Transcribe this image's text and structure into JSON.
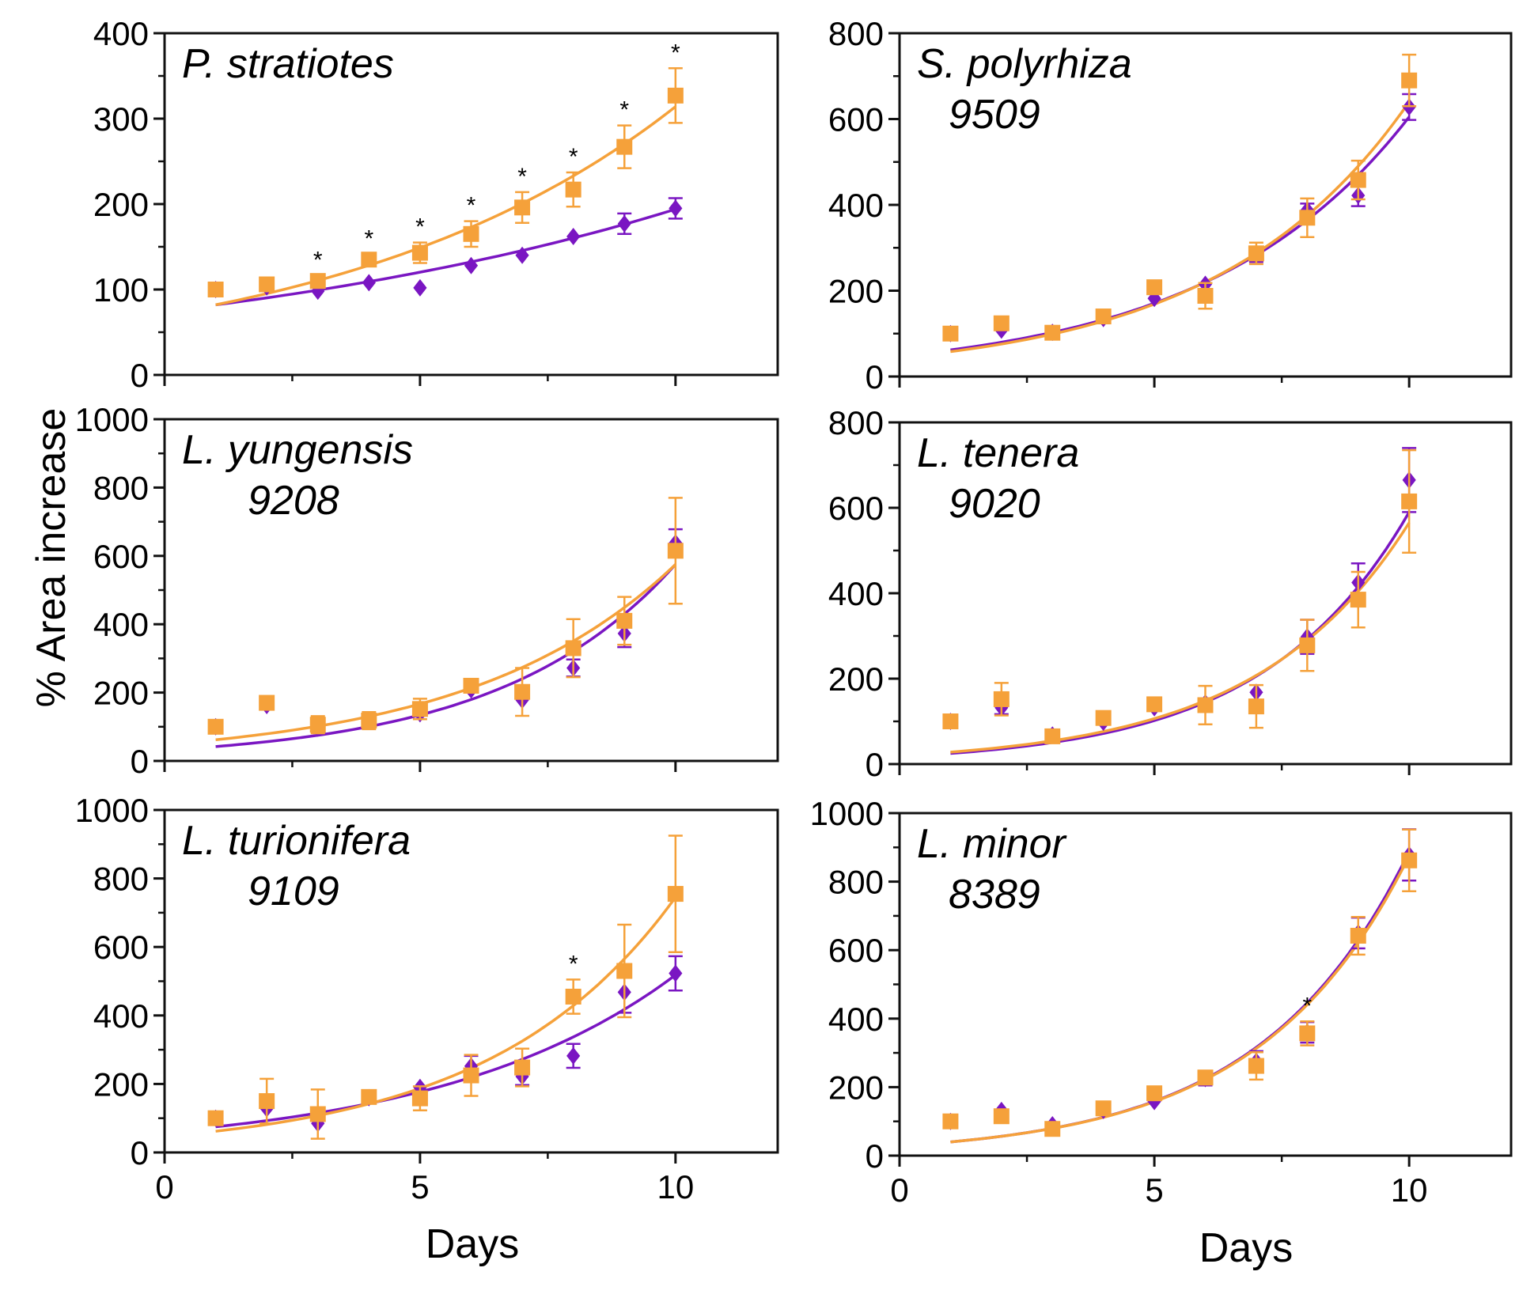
{
  "colors": {
    "series_a": "#7a16c2",
    "series_b": "#f5a13a",
    "frame": "#111111"
  },
  "ylabel": "% Area increase",
  "xlabel": "Days",
  "chart_data": [
    {
      "type": "scatter",
      "title_line1": "P. stratiotes",
      "title_line2": "",
      "ylim": [
        0,
        400
      ],
      "yticks": [
        "0",
        "100",
        "200",
        "300",
        "400"
      ],
      "xlim": [
        0,
        12
      ],
      "xticks": [
        "",
        "",
        ""
      ],
      "x": [
        1,
        2,
        3,
        4,
        5,
        6,
        7,
        8,
        9,
        10
      ],
      "series": [
        {
          "name": "purple",
          "marker": "diamond",
          "values": [
            100,
            103,
            98,
            108,
            102,
            128,
            140,
            162,
            177,
            195
          ],
          "err": [
            0,
            0,
            0,
            0,
            0,
            0,
            0,
            0,
            12,
            12
          ],
          "fit": [
            82,
            194
          ]
        },
        {
          "name": "orange",
          "marker": "square",
          "values": [
            100,
            106,
            110,
            135,
            143,
            165,
            196,
            217,
            267,
            327
          ],
          "err": [
            0,
            0,
            6,
            6,
            12,
            15,
            18,
            20,
            25,
            32
          ],
          "fit": [
            82,
            314
          ]
        }
      ],
      "significance": {
        "symbol": "*",
        "at_x": [
          3,
          4,
          5,
          6,
          7,
          8,
          9,
          10
        ]
      }
    },
    {
      "type": "scatter",
      "title_line1": "S. polyrhiza",
      "title_line2": "9509",
      "ylim": [
        0,
        800
      ],
      "yticks": [
        "0",
        "200",
        "400",
        "600",
        "800"
      ],
      "xlim": [
        0,
        12
      ],
      "xticks": [
        "",
        "",
        ""
      ],
      "x": [
        1,
        2,
        3,
        4,
        5,
        6,
        7,
        8,
        9,
        10
      ],
      "series": [
        {
          "name": "purple",
          "marker": "diamond",
          "values": [
            100,
            108,
            103,
            135,
            182,
            215,
            282,
            388,
            422,
            628
          ],
          "err": [
            0,
            0,
            0,
            0,
            0,
            0,
            15,
            15,
            25,
            30
          ],
          "fit": [
            62,
            605
          ]
        },
        {
          "name": "orange",
          "marker": "square",
          "values": [
            100,
            124,
            102,
            140,
            208,
            188,
            287,
            370,
            458,
            690
          ],
          "err": [
            0,
            0,
            0,
            0,
            0,
            30,
            25,
            45,
            45,
            60
          ],
          "fit": [
            58,
            640
          ]
        }
      ],
      "significance": {
        "symbol": "*",
        "at_x": []
      }
    },
    {
      "type": "scatter",
      "title_line1": "L. yungensis",
      "title_line2": "9208",
      "ylim": [
        0,
        1000
      ],
      "yticks": [
        "0",
        "200",
        "400",
        "600",
        "800",
        "1000"
      ],
      "xlim": [
        0,
        12
      ],
      "xticks": [
        "",
        "",
        ""
      ],
      "x": [
        1,
        2,
        3,
        4,
        5,
        6,
        7,
        8,
        9,
        10
      ],
      "series": [
        {
          "name": "purple",
          "marker": "diamond",
          "values": [
            100,
            162,
            96,
            118,
            138,
            208,
            178,
            272,
            373,
            638
          ],
          "err": [
            0,
            0,
            0,
            0,
            0,
            0,
            0,
            25,
            40,
            40
          ],
          "fit": [
            42,
            575
          ]
        },
        {
          "name": "orange",
          "marker": "square",
          "values": [
            100,
            170,
            106,
            118,
            152,
            220,
            202,
            330,
            410,
            615
          ],
          "err": [
            0,
            0,
            25,
            25,
            30,
            0,
            70,
            85,
            70,
            155
          ],
          "fit": [
            62,
            575
          ]
        }
      ],
      "significance": {
        "symbol": "*",
        "at_x": []
      }
    },
    {
      "type": "scatter",
      "title_line1": "L. tenera",
      "title_line2": "9020",
      "ylim": [
        0,
        800
      ],
      "yticks": [
        "0",
        "200",
        "400",
        "600",
        "800"
      ],
      "xlim": [
        0,
        12
      ],
      "xticks": [
        "",
        "",
        ""
      ],
      "x": [
        1,
        2,
        3,
        4,
        5,
        6,
        7,
        8,
        9,
        10
      ],
      "series": [
        {
          "name": "purple",
          "marker": "diamond",
          "values": [
            100,
            132,
            68,
            98,
            132,
            143,
            168,
            298,
            425,
            665
          ],
          "err": [
            0,
            15,
            0,
            0,
            0,
            0,
            0,
            40,
            45,
            75
          ],
          "fit": [
            25,
            590
          ]
        },
        {
          "name": "orange",
          "marker": "square",
          "values": [
            100,
            152,
            65,
            108,
            140,
            138,
            135,
            278,
            385,
            615
          ],
          "err": [
            0,
            38,
            0,
            0,
            15,
            45,
            50,
            60,
            65,
            120
          ],
          "fit": [
            28,
            565
          ]
        }
      ],
      "significance": {
        "symbol": "*",
        "at_x": []
      }
    },
    {
      "type": "scatter",
      "title_line1": "L. turionifera",
      "title_line2": "9109",
      "ylim": [
        0,
        1000
      ],
      "yticks": [
        "0",
        "200",
        "400",
        "600",
        "800",
        "1000"
      ],
      "xlim": [
        0,
        12
      ],
      "xticks": [
        "0",
        "5",
        "10"
      ],
      "x": [
        1,
        2,
        3,
        4,
        5,
        6,
        7,
        8,
        9,
        10
      ],
      "series": [
        {
          "name": "purple",
          "marker": "diamond",
          "values": [
            100,
            128,
            85,
            160,
            190,
            252,
            222,
            282,
            468,
            523
          ],
          "err": [
            0,
            0,
            0,
            0,
            0,
            30,
            25,
            35,
            60,
            50
          ],
          "fit": [
            75,
            518
          ]
        },
        {
          "name": "orange",
          "marker": "square",
          "values": [
            100,
            150,
            112,
            162,
            158,
            225,
            248,
            455,
            530,
            755
          ],
          "err": [
            0,
            65,
            72,
            0,
            35,
            60,
            55,
            50,
            135,
            170
          ],
          "fit": [
            62,
            745
          ]
        }
      ],
      "significance": {
        "symbol": "*",
        "at_x": [
          8
        ]
      }
    },
    {
      "type": "scatter",
      "title_line1": "L. minor",
      "title_line2": "8389",
      "ylim": [
        0,
        1000
      ],
      "yticks": [
        "0",
        "200",
        "400",
        "600",
        "800",
        "1000"
      ],
      "xlim": [
        0,
        12
      ],
      "xticks": [
        "0",
        "5",
        "10"
      ],
      "x": [
        1,
        2,
        3,
        4,
        5,
        6,
        7,
        8,
        9,
        10
      ],
      "series": [
        {
          "name": "purple",
          "marker": "diamond",
          "values": [
            100,
            132,
            90,
            132,
            158,
            225,
            275,
            360,
            650,
            878
          ],
          "err": [
            0,
            0,
            0,
            0,
            0,
            20,
            30,
            30,
            45,
            75
          ],
          "fit": [
            40,
            888
          ]
        },
        {
          "name": "orange",
          "marker": "square",
          "values": [
            100,
            115,
            78,
            138,
            182,
            228,
            262,
            357,
            642,
            862
          ],
          "err": [
            0,
            0,
            0,
            0,
            0,
            20,
            40,
            35,
            55,
            90
          ],
          "fit": [
            40,
            875
          ]
        }
      ],
      "significance": {
        "symbol": "*",
        "at_x": [
          8
        ]
      }
    }
  ]
}
